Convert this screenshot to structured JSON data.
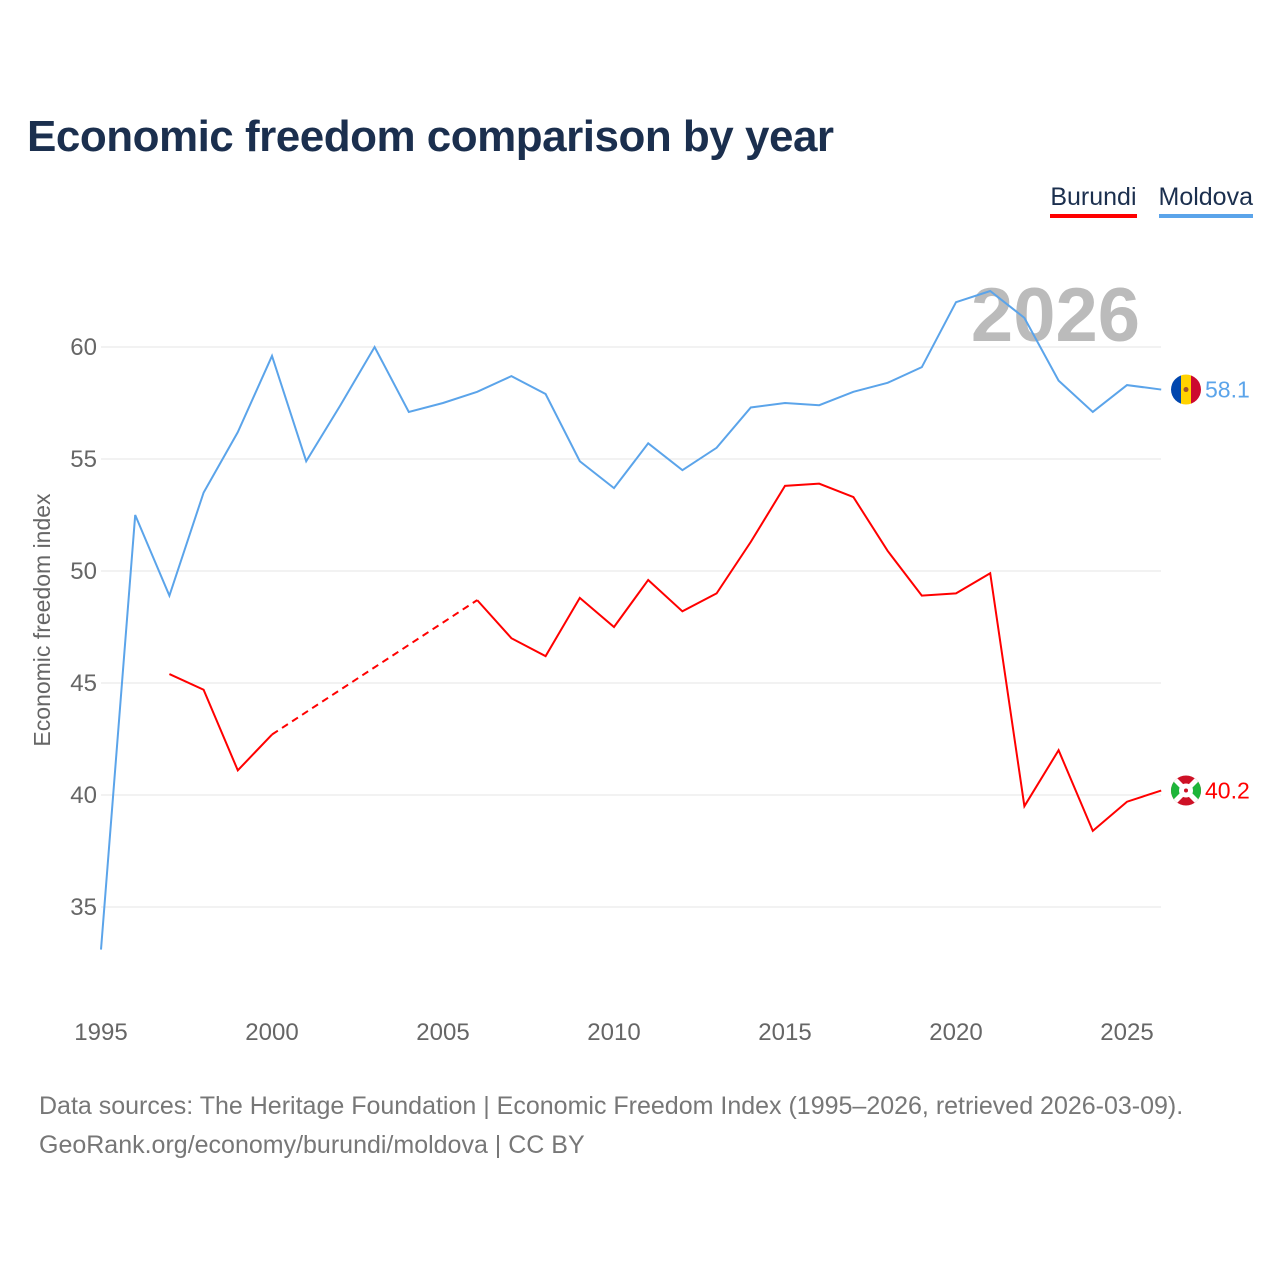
{
  "chart_data": {
    "type": "line",
    "title": "Economic freedom comparison by year",
    "xlabel": "",
    "ylabel": "Economic freedom index",
    "xlim": [
      1995,
      2026
    ],
    "ylim": [
      31,
      64
    ],
    "x_ticks": [
      "1995",
      "2000",
      "2005",
      "2010",
      "2015",
      "2020",
      "2025"
    ],
    "y_ticks": [
      "35",
      "40",
      "45",
      "50",
      "55",
      "60"
    ],
    "grid": true,
    "legend_position": "top-right",
    "year_label": "2026",
    "x": [
      1995,
      1996,
      1997,
      1998,
      1999,
      2000,
      2001,
      2002,
      2003,
      2004,
      2005,
      2006,
      2007,
      2008,
      2009,
      2010,
      2011,
      2012,
      2013,
      2014,
      2015,
      2016,
      2017,
      2018,
      2019,
      2020,
      2021,
      2022,
      2023,
      2024,
      2025,
      2026
    ],
    "series": [
      {
        "name": "Burundi",
        "color": "#ff0000",
        "end_label": "40.2",
        "values": [
          null,
          null,
          45.4,
          44.7,
          41.1,
          42.7,
          null,
          null,
          null,
          null,
          null,
          48.7,
          47.0,
          46.2,
          48.8,
          47.5,
          49.6,
          48.2,
          49.0,
          51.3,
          53.8,
          53.9,
          53.3,
          50.9,
          48.9,
          49.0,
          49.9,
          39.5,
          42.0,
          38.4,
          39.7,
          40.2
        ]
      },
      {
        "name": "Moldova",
        "color": "#5ba4ea",
        "end_label": "58.1",
        "values": [
          33.1,
          52.5,
          48.9,
          53.5,
          56.2,
          59.6,
          54.9,
          57.4,
          60.0,
          57.1,
          57.5,
          58.0,
          58.7,
          57.9,
          54.9,
          53.7,
          55.7,
          54.5,
          55.5,
          57.3,
          57.5,
          57.4,
          58.0,
          58.4,
          59.1,
          62.0,
          62.5,
          61.3,
          58.5,
          57.1,
          58.3,
          58.1
        ]
      }
    ]
  },
  "source": {
    "line1": "Data sources: The Heritage Foundation | Economic Freedom Index (1995–2026, retrieved 2026-03-09).",
    "line2": "GeoRank.org/economy/burundi/moldova | CC BY"
  }
}
